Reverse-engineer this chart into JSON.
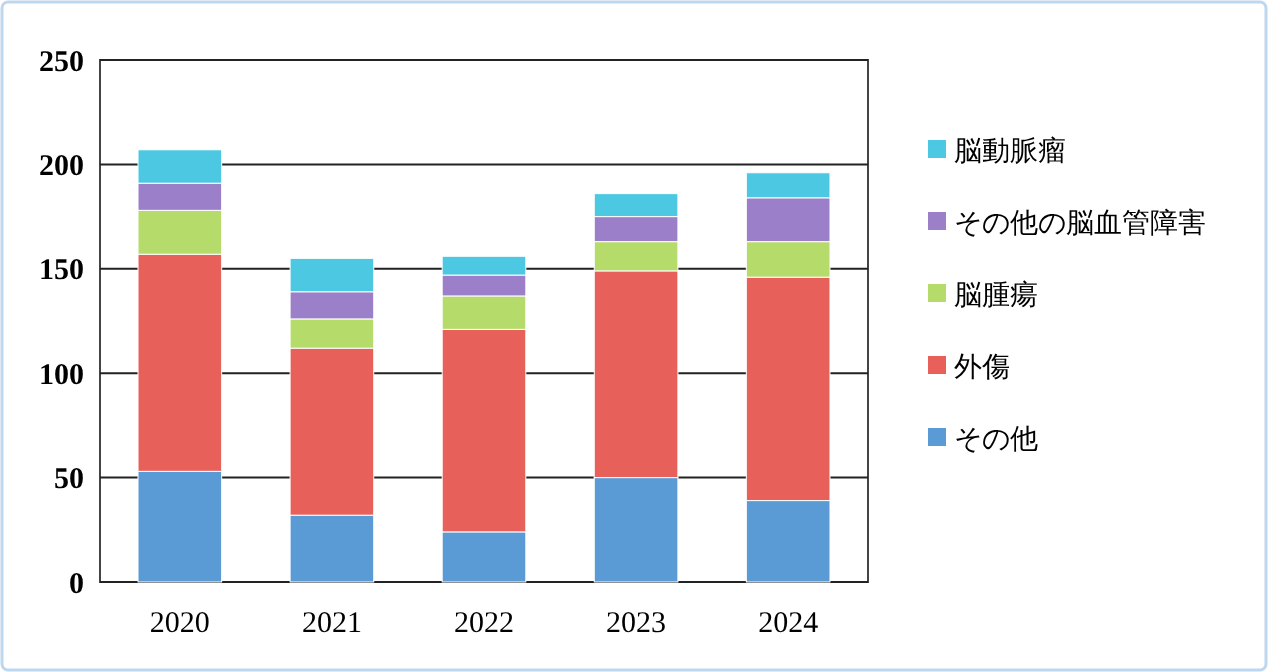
{
  "chart_data": {
    "type": "bar",
    "stacked": true,
    "categories": [
      "2020",
      "2021",
      "2022",
      "2023",
      "2024"
    ],
    "series": [
      {
        "name": "その他",
        "color": "#5b9bd5",
        "values": [
          53,
          32,
          24,
          50,
          39
        ]
      },
      {
        "name": "外傷",
        "color": "#e8605a",
        "values": [
          104,
          80,
          97,
          99,
          107
        ]
      },
      {
        "name": "脳腫瘍",
        "color": "#b5db6a",
        "values": [
          21,
          14,
          16,
          14,
          17
        ]
      },
      {
        "name": "その他の脳血管障害",
        "color": "#9b7fc8",
        "values": [
          13,
          13,
          10,
          12,
          21
        ]
      },
      {
        "name": "脳動脈瘤",
        "color": "#4cc8e3",
        "values": [
          16,
          16,
          9,
          11,
          12
        ]
      }
    ],
    "ylim": [
      0,
      250
    ],
    "yticks": [
      0,
      50,
      100,
      150,
      200,
      250
    ],
    "grid": "y",
    "legend": "right"
  }
}
